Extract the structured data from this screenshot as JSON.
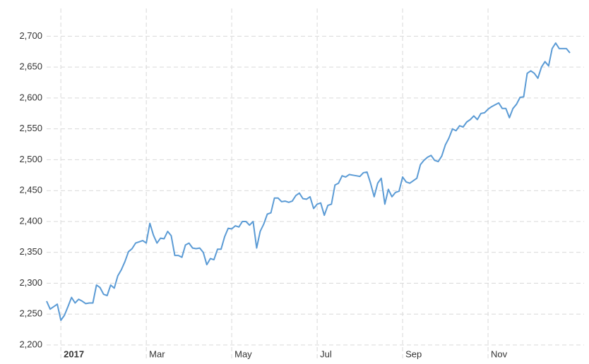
{
  "chart_data": {
    "type": "line",
    "color": "#5b9bd5",
    "grid": true,
    "categories": [
      null,
      null,
      null,
      null,
      "2017",
      null,
      null,
      null,
      null,
      null,
      null,
      null,
      null,
      null,
      null,
      null,
      null,
      null,
      null,
      null,
      null,
      null,
      null,
      null,
      null,
      null,
      null,
      null,
      "Mar",
      null,
      null,
      null,
      null,
      null,
      null,
      null,
      null,
      null,
      null,
      null,
      null,
      null,
      null,
      null,
      null,
      null,
      null,
      null,
      null,
      null,
      null,
      null,
      "May",
      null,
      null,
      null,
      null,
      null,
      null,
      null,
      null,
      null,
      null,
      null,
      null,
      null,
      null,
      null,
      null,
      null,
      null,
      null,
      null,
      null,
      null,
      null,
      "Jul",
      null,
      null,
      null,
      null,
      null,
      null,
      null,
      null,
      null,
      null,
      null,
      null,
      null,
      null,
      null,
      null,
      null,
      null,
      null,
      null,
      null,
      null,
      null,
      "Sep",
      null,
      null,
      null,
      null,
      null,
      null,
      null,
      null,
      null,
      null,
      null,
      null,
      null,
      null,
      null,
      null,
      null,
      null,
      null,
      null,
      null,
      null,
      null,
      "Nov",
      null,
      null,
      null,
      null,
      null,
      null,
      null,
      null,
      null,
      null,
      null,
      null,
      null,
      null,
      null,
      null,
      null,
      null,
      null,
      null,
      null,
      null,
      null
    ],
    "values": [
      2271,
      2258,
      2262,
      2266,
      2240,
      2248,
      2262,
      2277,
      2268,
      2274,
      2271,
      2267,
      2268,
      2268,
      2297,
      2293,
      2282,
      2280,
      2297,
      2292,
      2312,
      2322,
      2335,
      2351,
      2356,
      2365,
      2367,
      2369,
      2365,
      2397,
      2378,
      2365,
      2373,
      2372,
      2384,
      2377,
      2345,
      2345,
      2342,
      2362,
      2365,
      2357,
      2356,
      2357,
      2350,
      2330,
      2340,
      2338,
      2355,
      2355,
      2375,
      2389,
      2388,
      2393,
      2391,
      2400,
      2400,
      2394,
      2400,
      2357,
      2384,
      2396,
      2412,
      2414,
      2438,
      2438,
      2432,
      2433,
      2431,
      2433,
      2442,
      2446,
      2437,
      2436,
      2440,
      2421,
      2428,
      2430,
      2410,
      2426,
      2428,
      2459,
      2462,
      2474,
      2472,
      2476,
      2475,
      2474,
      2473,
      2479,
      2480,
      2462,
      2440,
      2462,
      2470,
      2428,
      2452,
      2440,
      2447,
      2449,
      2472,
      2464,
      2462,
      2466,
      2470,
      2492,
      2499,
      2504,
      2507,
      2499,
      2497,
      2506,
      2524,
      2535,
      2550,
      2547,
      2555,
      2553,
      2561,
      2565,
      2571,
      2565,
      2575,
      2576,
      2582,
      2586,
      2589,
      2592,
      2583,
      2583,
      2568,
      2583,
      2590,
      2601,
      2602,
      2640,
      2644,
      2640,
      2632,
      2650,
      2659,
      2652,
      2680,
      2689,
      2680,
      2680,
      2680,
      2673
    ],
    "ylim": [
      2200,
      2745
    ],
    "yticks": [
      {
        "value": 2200,
        "label": "2,200"
      },
      {
        "value": 2250,
        "label": "2,250"
      },
      {
        "value": 2300,
        "label": "2,300"
      },
      {
        "value": 2350,
        "label": "2,350"
      },
      {
        "value": 2400,
        "label": "2,400"
      },
      {
        "value": 2450,
        "label": "2,450"
      },
      {
        "value": 2500,
        "label": "2,500"
      },
      {
        "value": 2550,
        "label": "2,550"
      },
      {
        "value": 2600,
        "label": "2,600"
      },
      {
        "value": 2650,
        "label": "2,650"
      },
      {
        "value": 2700,
        "label": "2,700"
      }
    ]
  }
}
